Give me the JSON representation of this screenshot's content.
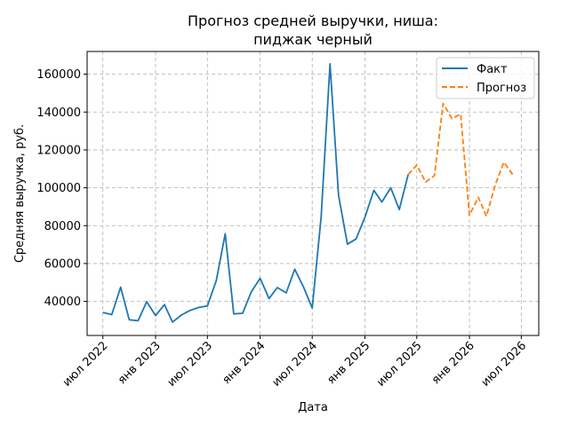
{
  "chart_data": {
    "type": "line",
    "title_lines": [
      "Прогноз средней выручки, ниша:",
      "пиджак черный"
    ],
    "xlabel": "Дата",
    "ylabel": "Средняя выручка, руб.",
    "x_ticks": [
      {
        "date": "2022-07-01",
        "label": "июл 2022"
      },
      {
        "date": "2023-01-01",
        "label": "янв 2023"
      },
      {
        "date": "2023-07-01",
        "label": "июл 2023"
      },
      {
        "date": "2024-01-01",
        "label": "янв 2024"
      },
      {
        "date": "2024-07-01",
        "label": "июл 2024"
      },
      {
        "date": "2025-01-01",
        "label": "янв 2025"
      },
      {
        "date": "2025-07-01",
        "label": "июл 2025"
      },
      {
        "date": "2026-01-01",
        "label": "янв 2026"
      },
      {
        "date": "2026-07-01",
        "label": "июл 2026"
      }
    ],
    "y_ticks": [
      {
        "value": 40000,
        "label": "40000"
      },
      {
        "value": 60000,
        "label": "60000"
      },
      {
        "value": 80000,
        "label": "80000"
      },
      {
        "value": 100000,
        "label": "100000"
      },
      {
        "value": 120000,
        "label": "120000"
      },
      {
        "value": 140000,
        "label": "140000"
      },
      {
        "value": 160000,
        "label": "160000"
      }
    ],
    "xlim": [
      "2022-05-07",
      "2026-08-31"
    ],
    "ylim": [
      22000,
      172000
    ],
    "grid": true,
    "legend_position": "top-right",
    "series": [
      {
        "name": "Факт",
        "color": "#1f77b4",
        "style": "solid",
        "points": [
          [
            "2022-07-01",
            34200
          ],
          [
            "2022-08-01",
            33000
          ],
          [
            "2022-09-01",
            47500
          ],
          [
            "2022-10-01",
            30300
          ],
          [
            "2022-11-01",
            29800
          ],
          [
            "2022-12-01",
            39800
          ],
          [
            "2023-01-01",
            32500
          ],
          [
            "2023-02-01",
            38300
          ],
          [
            "2023-03-01",
            29100
          ],
          [
            "2023-04-01",
            32800
          ],
          [
            "2023-05-01",
            35200
          ],
          [
            "2023-06-01",
            36800
          ],
          [
            "2023-07-01",
            37600
          ],
          [
            "2023-08-01",
            51000
          ],
          [
            "2023-09-01",
            75700
          ],
          [
            "2023-10-01",
            33400
          ],
          [
            "2023-11-01",
            33700
          ],
          [
            "2023-12-01",
            45000
          ],
          [
            "2024-01-01",
            52200
          ],
          [
            "2024-02-01",
            41500
          ],
          [
            "2024-03-01",
            47300
          ],
          [
            "2024-04-01",
            44500
          ],
          [
            "2024-05-01",
            57000
          ],
          [
            "2024-06-01",
            47500
          ],
          [
            "2024-07-01",
            36500
          ],
          [
            "2024-08-01",
            84500
          ],
          [
            "2024-09-01",
            165500
          ],
          [
            "2024-10-01",
            96000
          ],
          [
            "2024-11-01",
            70200
          ],
          [
            "2024-12-01",
            73000
          ],
          [
            "2025-01-01",
            84500
          ],
          [
            "2025-02-01",
            98700
          ],
          [
            "2025-03-01",
            92500
          ],
          [
            "2025-04-01",
            100000
          ],
          [
            "2025-05-01",
            88500
          ],
          [
            "2025-06-01",
            107000
          ]
        ]
      },
      {
        "name": "Прогноз",
        "color": "#ff7f0e",
        "style": "dashed",
        "points": [
          [
            "2025-06-01",
            107000
          ],
          [
            "2025-07-01",
            112000
          ],
          [
            "2025-08-01",
            103000
          ],
          [
            "2025-09-01",
            106500
          ],
          [
            "2025-10-01",
            144500
          ],
          [
            "2025-11-01",
            136500
          ],
          [
            "2025-12-01",
            139000
          ],
          [
            "2026-01-01",
            85500
          ],
          [
            "2026-02-01",
            95000
          ],
          [
            "2026-03-01",
            85000
          ],
          [
            "2026-04-01",
            101500
          ],
          [
            "2026-05-01",
            113500
          ],
          [
            "2026-06-01",
            107000
          ]
        ]
      }
    ]
  }
}
